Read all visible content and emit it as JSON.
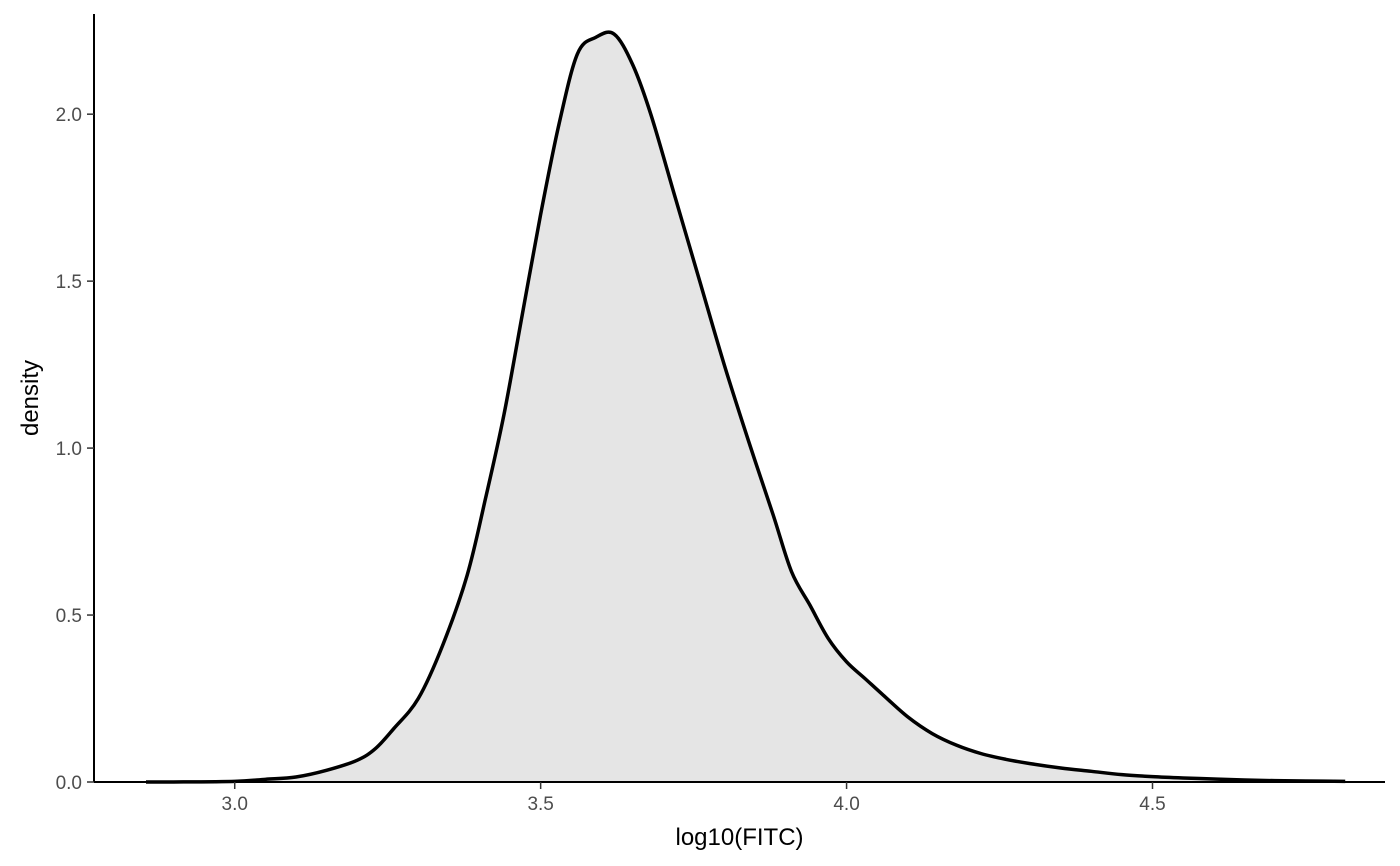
{
  "chart_data": {
    "type": "area",
    "xlabel": "log10(FITC)",
    "ylabel": "density",
    "xlim": [
      2.77,
      4.88
    ],
    "ylim": [
      0,
      2.3
    ],
    "x_ticks": [
      3.0,
      3.5,
      4.0,
      4.5
    ],
    "x_tick_labels": [
      "3.0",
      "3.5",
      "4.0",
      "4.5"
    ],
    "y_ticks": [
      0.0,
      0.5,
      1.0,
      1.5,
      2.0
    ],
    "y_tick_labels": [
      "0.0",
      "0.5",
      "1.0",
      "1.5",
      "2.0"
    ],
    "grid": false,
    "fill_color": "#e5e5e5",
    "line_color": "#000000",
    "series": [
      {
        "x": [
          2.855,
          2.9,
          3.0,
          3.05,
          3.1,
          3.15,
          3.2,
          3.23,
          3.26,
          3.3,
          3.34,
          3.38,
          3.41,
          3.44,
          3.47,
          3.5,
          3.53,
          3.56,
          3.59,
          3.62,
          3.65,
          3.68,
          3.72,
          3.76,
          3.8,
          3.84,
          3.88,
          3.91,
          3.94,
          3.97,
          4.0,
          4.03,
          4.06,
          4.1,
          4.14,
          4.18,
          4.22,
          4.26,
          4.3,
          4.35,
          4.4,
          4.45,
          4.5,
          4.55,
          4.6,
          4.65,
          4.7,
          4.75,
          4.815
        ],
        "y": [
          0.0,
          0.0,
          0.002,
          0.008,
          0.015,
          0.035,
          0.065,
          0.1,
          0.16,
          0.25,
          0.41,
          0.62,
          0.85,
          1.1,
          1.4,
          1.7,
          1.97,
          2.18,
          2.23,
          2.24,
          2.15,
          2.0,
          1.75,
          1.5,
          1.25,
          1.02,
          0.8,
          0.63,
          0.53,
          0.43,
          0.36,
          0.31,
          0.26,
          0.195,
          0.145,
          0.11,
          0.085,
          0.068,
          0.055,
          0.042,
          0.032,
          0.022,
          0.016,
          0.012,
          0.009,
          0.006,
          0.004,
          0.003,
          0.002
        ]
      }
    ]
  }
}
